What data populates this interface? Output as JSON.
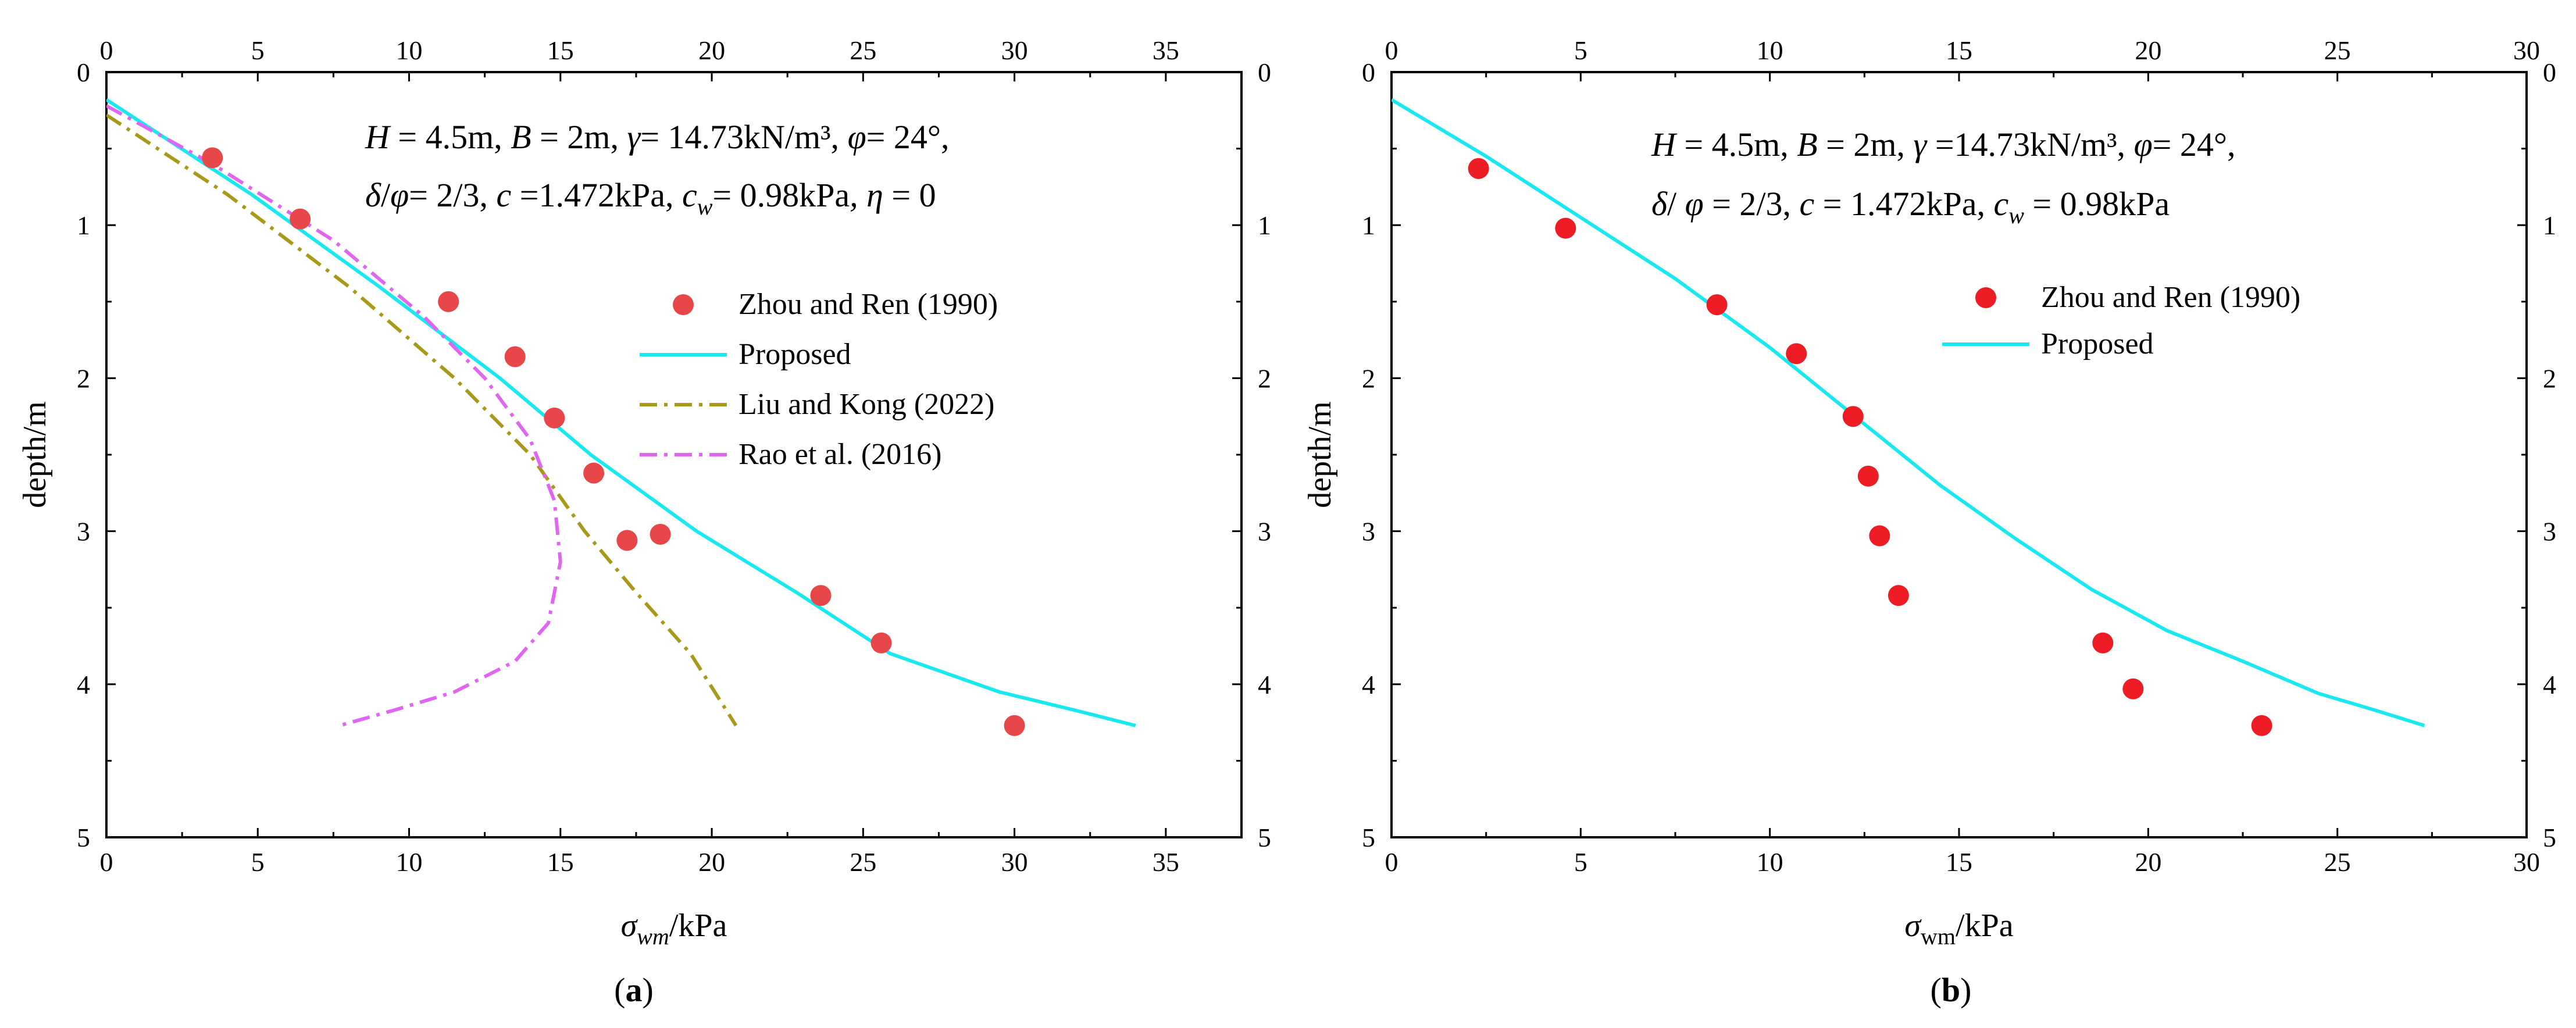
{
  "chart_data": [
    {
      "panel_label": "(a)",
      "type": "scatter+line",
      "xlabel_symbol": "σ",
      "xlabel_sub": "wm",
      "xlabel_unit": "/kPa",
      "ylabel": "depth/m",
      "xlim": [
        0,
        37.5
      ],
      "ylim": [
        0,
        5
      ],
      "y_inverted": true,
      "x_ticks": [
        0,
        5,
        10,
        15,
        20,
        25,
        30,
        35
      ],
      "y_ticks": [
        0,
        1,
        2,
        3,
        4,
        5
      ],
      "annotation_lines": [
        [
          {
            "t": "H",
            "i": true
          },
          {
            "t": " = 4.5m, "
          },
          {
            "t": "B",
            "i": true
          },
          {
            "t": " = 2m, "
          },
          {
            "t": "γ",
            "i": true
          },
          {
            "t": "= 14.73kN/m³, "
          },
          {
            "t": "φ",
            "i": true
          },
          {
            "t": "= 24°,"
          }
        ],
        [
          {
            "t": "δ",
            "i": true
          },
          {
            "t": "/"
          },
          {
            "t": "φ",
            "i": true
          },
          {
            "t": "= 2/3, "
          },
          {
            "t": "c",
            "i": true
          },
          {
            "t": " =1.472kPa, "
          },
          {
            "t": "c",
            "i": true
          },
          {
            "t": "w",
            "i": true,
            "sub": true
          },
          {
            "t": "= 0.98kPa"
          },
          {
            "t": ", η",
            "i": true
          },
          {
            "t": " = 0"
          }
        ]
      ],
      "series": [
        {
          "name": "Zhou and Ren (1990)",
          "kind": "scatter",
          "color": "#e8474a",
          "points": [
            [
              3.5,
              0.56
            ],
            [
              6.4,
              0.96
            ],
            [
              11.3,
              1.5
            ],
            [
              13.5,
              1.86
            ],
            [
              14.8,
              2.26
            ],
            [
              16.1,
              2.62
            ],
            [
              17.2,
              3.06
            ],
            [
              18.3,
              3.02
            ],
            [
              23.6,
              3.42
            ],
            [
              25.6,
              3.73
            ],
            [
              30.0,
              4.27
            ]
          ]
        },
        {
          "name": "Proposed",
          "kind": "line",
          "color": "#19e8f0",
          "dash": "",
          "points": [
            [
              0,
              0.18
            ],
            [
              4.8,
              0.8
            ],
            [
              9.0,
              1.4
            ],
            [
              13.0,
              2.0
            ],
            [
              16.0,
              2.5
            ],
            [
              19.5,
              3.0
            ],
            [
              22.8,
              3.4
            ],
            [
              25.9,
              3.8
            ],
            [
              29.5,
              4.05
            ],
            [
              32.0,
              4.17
            ],
            [
              34.0,
              4.27
            ]
          ]
        },
        {
          "name": "Liu and Kong (2022)",
          "kind": "line",
          "color": "#a8991a",
          "dash": "30 12 6 12",
          "points": [
            [
              0,
              0.28
            ],
            [
              4.0,
              0.8
            ],
            [
              8.0,
              1.4
            ],
            [
              11.5,
              2.0
            ],
            [
              14.0,
              2.5
            ],
            [
              15.8,
              3.0
            ],
            [
              17.5,
              3.4
            ],
            [
              19.3,
              3.8
            ],
            [
              20.8,
              4.27
            ]
          ]
        },
        {
          "name": "Rao et al. (2016)",
          "kind": "line",
          "color": "#e066f0",
          "dash": "30 12 6 12",
          "points": [
            [
              0,
              0.22
            ],
            [
              3.5,
              0.6
            ],
            [
              7.5,
              1.1
            ],
            [
              10.5,
              1.6
            ],
            [
              12.5,
              2.0
            ],
            [
              14.0,
              2.4
            ],
            [
              14.8,
              2.8
            ],
            [
              15.0,
              3.2
            ],
            [
              14.6,
              3.6
            ],
            [
              13.5,
              3.85
            ],
            [
              11.5,
              4.05
            ],
            [
              9.5,
              4.17
            ],
            [
              7.7,
              4.27
            ]
          ]
        }
      ]
    },
    {
      "panel_label": "(b)",
      "type": "scatter+line",
      "xlabel_symbol": "σ",
      "xlabel_sub": "wm",
      "xlabel_unit": "/kPa",
      "ylabel": "depth/m",
      "xlim": [
        0,
        30
      ],
      "ylim": [
        0,
        5
      ],
      "y_inverted": true,
      "x_ticks": [
        0,
        5,
        10,
        15,
        20,
        25,
        30
      ],
      "y_ticks": [
        0,
        1,
        2,
        3,
        4,
        5
      ],
      "annotation_lines": [
        [
          {
            "t": "H",
            "i": true
          },
          {
            "t": " = 4.5m, "
          },
          {
            "t": "B",
            "i": true
          },
          {
            "t": " = 2m, "
          },
          {
            "t": "γ",
            "i": true
          },
          {
            "t": " =14.73kN/m³, "
          },
          {
            "t": "φ",
            "i": true
          },
          {
            "t": "= 24°,"
          }
        ],
        [
          {
            "t": "δ",
            "i": true
          },
          {
            "t": "/ "
          },
          {
            "t": "φ",
            "i": true
          },
          {
            "t": " = 2/3, "
          },
          {
            "t": "c",
            "i": true
          },
          {
            "t": " = 1.472kPa, "
          },
          {
            "t": "c",
            "i": true
          },
          {
            "t": "w",
            "i": true,
            "sub": true
          },
          {
            "t": " = 0.98kPa"
          }
        ]
      ],
      "series": [
        {
          "name": "Zhou and Ren (1990)",
          "kind": "scatter",
          "color": "#ee1c24",
          "points": [
            [
              2.3,
              0.63
            ],
            [
              4.6,
              1.02
            ],
            [
              8.6,
              1.52
            ],
            [
              10.7,
              1.84
            ],
            [
              12.2,
              2.25
            ],
            [
              12.6,
              2.64
            ],
            [
              12.9,
              3.03
            ],
            [
              13.4,
              3.42
            ],
            [
              18.8,
              3.73
            ],
            [
              19.6,
              4.03
            ],
            [
              23.0,
              4.27
            ]
          ]
        },
        {
          "name": "Proposed",
          "kind": "line",
          "color": "#19e8f0",
          "dash": "",
          "points": [
            [
              0,
              0.18
            ],
            [
              2.5,
              0.55
            ],
            [
              5.0,
              0.95
            ],
            [
              7.5,
              1.35
            ],
            [
              10.0,
              1.8
            ],
            [
              12.5,
              2.3
            ],
            [
              14.5,
              2.7
            ],
            [
              16.5,
              3.05
            ],
            [
              18.5,
              3.38
            ],
            [
              20.5,
              3.65
            ],
            [
              22.5,
              3.85
            ],
            [
              24.5,
              4.06
            ],
            [
              26.0,
              4.17
            ],
            [
              27.3,
              4.27
            ]
          ]
        }
      ]
    }
  ]
}
